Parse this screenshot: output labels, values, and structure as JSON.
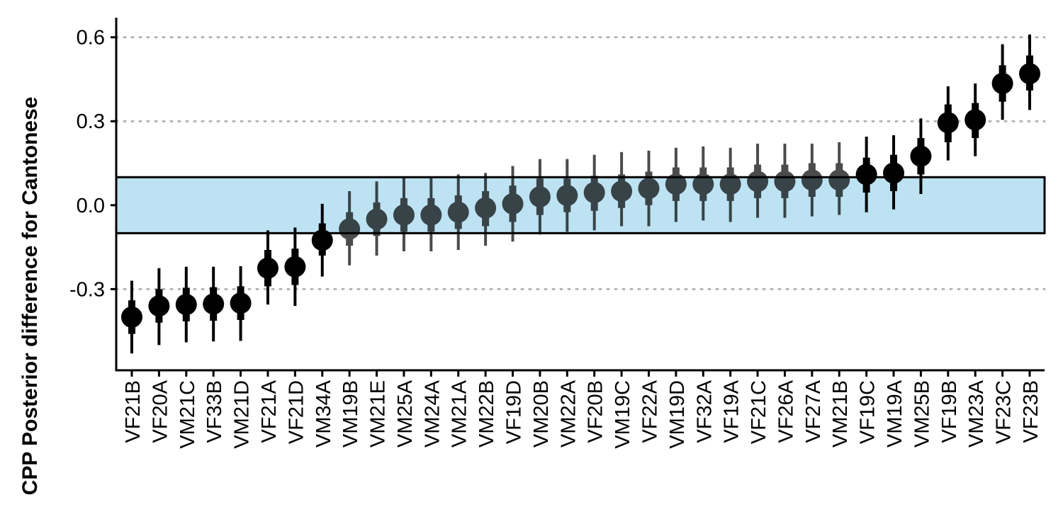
{
  "chart_data": {
    "type": "pointrange",
    "title": "",
    "xlabel": "",
    "ylabel": "CPP Posterior difference for Cantonese",
    "ylim": [
      -0.59,
      0.67
    ],
    "y_ticks": [
      0.6,
      0.3,
      0.0,
      -0.3
    ],
    "y_tick_labels": [
      "0.6",
      "0.3",
      "0.0",
      "-0.3"
    ],
    "grid": "horizontal-dotted",
    "rope": {
      "low": -0.1,
      "high": 0.1,
      "fill": "#bde2f2",
      "stroke": "#000000"
    },
    "colors": {
      "point": "#000000",
      "gridline": "#b3b3b3",
      "axis": "#000000"
    },
    "categories": [
      "VF21B",
      "VF20A",
      "VM21C",
      "VF33B",
      "VM21D",
      "VF21A",
      "VF21D",
      "VM34A",
      "VM19B",
      "VM21E",
      "VM25A",
      "VM24A",
      "VM21A",
      "VM22B",
      "VF19D",
      "VM20B",
      "VM22A",
      "VF20B",
      "VM19C",
      "VF22A",
      "VM19D",
      "VF32A",
      "VF19A",
      "VF21C",
      "VF26A",
      "VF27A",
      "VM21B",
      "VF19C",
      "VM19A",
      "VM25B",
      "VF19B",
      "VM23A",
      "VF23C",
      "VF23B"
    ],
    "estimate": [
      -0.4,
      -0.36,
      -0.355,
      -0.353,
      -0.35,
      -0.225,
      -0.22,
      -0.125,
      -0.085,
      -0.05,
      -0.035,
      -0.035,
      -0.025,
      -0.01,
      0.005,
      0.03,
      0.035,
      0.045,
      0.05,
      0.06,
      0.075,
      0.075,
      0.075,
      0.085,
      0.085,
      0.09,
      0.09,
      0.11,
      0.115,
      0.175,
      0.295,
      0.305,
      0.435,
      0.47
    ],
    "inner_low": [
      -0.46,
      -0.42,
      -0.415,
      -0.413,
      -0.41,
      -0.29,
      -0.285,
      -0.18,
      -0.145,
      -0.11,
      -0.095,
      -0.095,
      -0.085,
      -0.075,
      -0.06,
      -0.035,
      -0.025,
      -0.02,
      -0.01,
      0.0,
      0.015,
      0.015,
      0.015,
      0.025,
      0.025,
      0.03,
      0.03,
      0.045,
      0.05,
      0.11,
      0.225,
      0.24,
      0.37,
      0.41
    ],
    "inner_high": [
      -0.34,
      -0.3,
      -0.295,
      -0.293,
      -0.29,
      -0.16,
      -0.155,
      -0.065,
      -0.025,
      0.01,
      0.025,
      0.025,
      0.035,
      0.05,
      0.07,
      0.095,
      0.095,
      0.105,
      0.11,
      0.12,
      0.135,
      0.135,
      0.135,
      0.145,
      0.145,
      0.15,
      0.15,
      0.17,
      0.18,
      0.24,
      0.36,
      0.365,
      0.5,
      0.535
    ],
    "outer_low": [
      -0.53,
      -0.5,
      -0.49,
      -0.487,
      -0.485,
      -0.355,
      -0.36,
      -0.255,
      -0.215,
      -0.18,
      -0.165,
      -0.165,
      -0.16,
      -0.145,
      -0.13,
      -0.105,
      -0.095,
      -0.09,
      -0.075,
      -0.075,
      -0.06,
      -0.055,
      -0.06,
      -0.045,
      -0.045,
      -0.04,
      -0.035,
      -0.025,
      -0.015,
      0.04,
      0.16,
      0.175,
      0.305,
      0.34
    ],
    "outer_high": [
      -0.27,
      -0.225,
      -0.22,
      -0.22,
      -0.218,
      -0.09,
      -0.08,
      0.005,
      0.05,
      0.085,
      0.1,
      0.1,
      0.11,
      0.115,
      0.14,
      0.165,
      0.165,
      0.18,
      0.19,
      0.195,
      0.205,
      0.21,
      0.205,
      0.22,
      0.22,
      0.22,
      0.225,
      0.245,
      0.25,
      0.31,
      0.425,
      0.435,
      0.575,
      0.61
    ]
  }
}
